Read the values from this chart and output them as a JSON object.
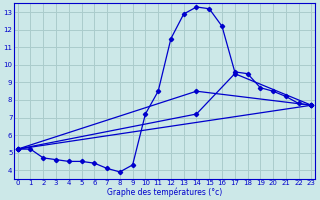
{
  "xlabel": "Graphe des températures (°c)",
  "bg_color": "#cce8e8",
  "grid_color": "#aacccc",
  "line_color": "#0000cc",
  "xlim": [
    0,
    23
  ],
  "ylim": [
    3.5,
    13.5
  ],
  "xticks": [
    0,
    1,
    2,
    3,
    4,
    5,
    6,
    7,
    8,
    9,
    10,
    11,
    12,
    13,
    14,
    15,
    16,
    17,
    18,
    19,
    20,
    21,
    22,
    23
  ],
  "yticks": [
    4,
    5,
    6,
    7,
    8,
    9,
    10,
    11,
    12,
    13
  ],
  "line1_x": [
    0,
    1,
    2,
    3,
    4,
    5,
    6,
    7,
    8,
    9,
    10,
    11,
    12,
    13,
    14,
    15,
    16,
    17,
    18,
    19,
    20,
    21,
    22,
    23
  ],
  "line1_y": [
    5.2,
    5.2,
    4.7,
    4.6,
    4.5,
    4.5,
    4.4,
    4.1,
    3.9,
    4.3,
    7.2,
    8.5,
    11.5,
    12.9,
    13.3,
    13.2,
    12.2,
    9.6,
    9.5,
    8.7,
    8.5,
    8.2,
    7.8,
    7.7
  ],
  "line2_x": [
    0,
    23
  ],
  "line2_y": [
    5.2,
    7.7
  ],
  "line3_x": [
    0,
    14,
    23
  ],
  "line3_y": [
    5.2,
    8.5,
    7.7
  ],
  "line4_x": [
    0,
    14,
    17,
    23
  ],
  "line4_y": [
    5.2,
    7.2,
    9.5,
    7.7
  ]
}
